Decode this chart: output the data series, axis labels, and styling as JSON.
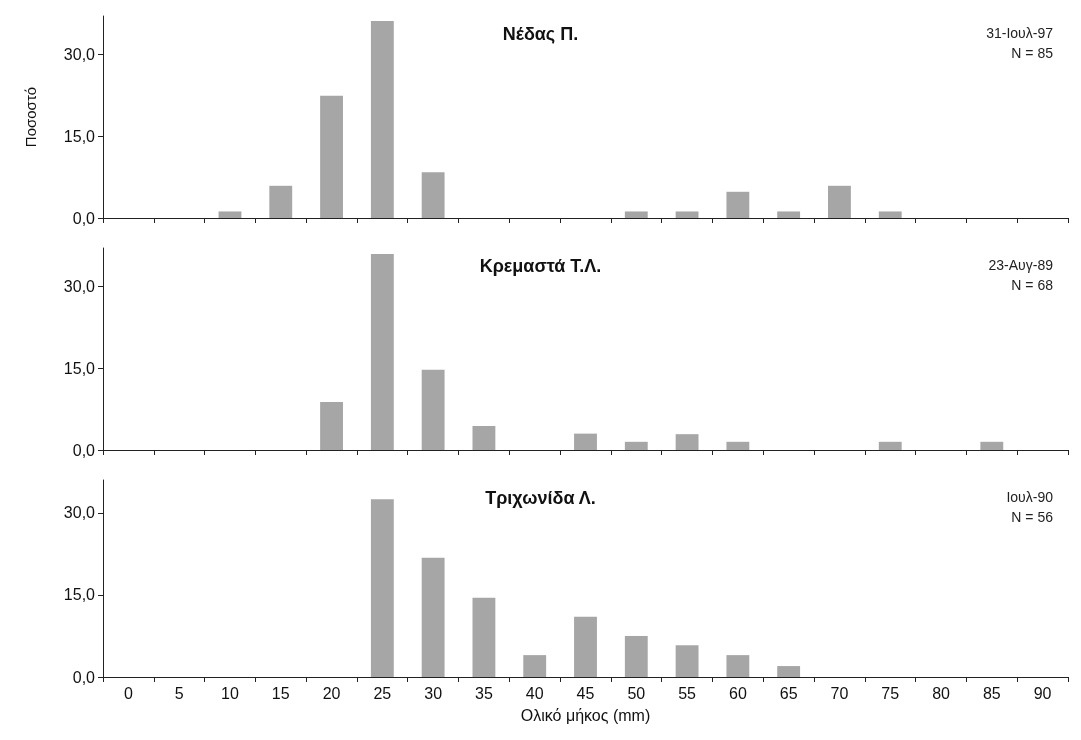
{
  "chart_data": [
    {
      "type": "bar",
      "title": "Νέδας Π.",
      "ylabel": "Ποσοστό",
      "annotations": [
        "31-Ιουλ-97",
        "N = 85"
      ],
      "categories": [
        "0",
        "5",
        "10",
        "15",
        "20",
        "25",
        "30",
        "35",
        "40",
        "45",
        "50",
        "55",
        "60",
        "65",
        "70",
        "75",
        "80",
        "85",
        "90"
      ],
      "series": [
        {
          "color": "#a6a6a6",
          "values": [
            0,
            0,
            1.2,
            5.9,
            22.4,
            36.1,
            8.4,
            0,
            0,
            0,
            1.2,
            1.2,
            4.8,
            1.2,
            5.9,
            1.2,
            0,
            0,
            0
          ]
        }
      ],
      "ylim": [
        0,
        37
      ],
      "yticks": [
        {
          "value": 0,
          "label": "0,0"
        },
        {
          "value": 15,
          "label": "15,0"
        },
        {
          "value": 30,
          "label": "30,0"
        }
      ],
      "tick_labels": "y",
      "grid": false
    },
    {
      "type": "bar",
      "title": "Κρεμαστά Τ.Λ.",
      "annotations": [
        "23-Αυγ-89",
        "N = 68"
      ],
      "categories": [
        "0",
        "5",
        "10",
        "15",
        "20",
        "25",
        "30",
        "35",
        "40",
        "45",
        "50",
        "55",
        "60",
        "65",
        "70",
        "75",
        "80",
        "85",
        "90"
      ],
      "series": [
        {
          "color": "#a6a6a6",
          "values": [
            0,
            0,
            0,
            0,
            8.8,
            35.9,
            14.7,
            4.4,
            0,
            3,
            1.5,
            2.9,
            1.5,
            0,
            0,
            1.5,
            0,
            1.5,
            0
          ]
        }
      ],
      "ylim": [
        0,
        37
      ],
      "yticks": [
        {
          "value": 0,
          "label": "0,0"
        },
        {
          "value": 15,
          "label": "15,0"
        },
        {
          "value": 30,
          "label": "30,0"
        }
      ],
      "tick_labels": "y",
      "grid": false
    },
    {
      "type": "bar",
      "title": "Τριχωνίδα Λ.",
      "xlabel": "Ολικό μήκος (mm)",
      "annotations": [
        "Ιουλ-90",
        "N = 56"
      ],
      "categories": [
        "0",
        "5",
        "10",
        "15",
        "20",
        "25",
        "30",
        "35",
        "40",
        "45",
        "50",
        "55",
        "60",
        "65",
        "70",
        "75",
        "80",
        "85",
        "90"
      ],
      "series": [
        {
          "color": "#a6a6a6",
          "values": [
            0,
            0,
            0,
            0,
            0,
            32.5,
            21.8,
            14.5,
            4,
            11,
            7.5,
            5.8,
            4,
            2,
            0,
            0,
            0,
            0,
            0
          ]
        }
      ],
      "ylim": [
        0,
        36
      ],
      "yticks": [
        {
          "value": 0,
          "label": "0,0"
        },
        {
          "value": 15,
          "label": "15,0"
        },
        {
          "value": 30,
          "label": "30,0"
        }
      ],
      "grid": false
    }
  ]
}
